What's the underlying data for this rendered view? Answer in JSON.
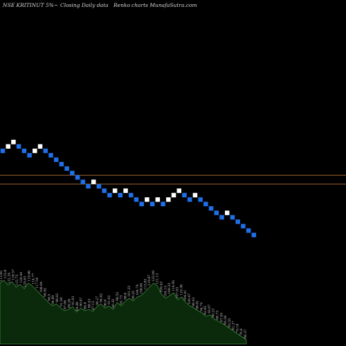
{
  "header": {
    "symbol": "NSE KRITINUT 5%~",
    "caption": "Closing Daily data",
    "chart_name": "Renko",
    "site": "charts MunafaSutra.com"
  },
  "colors": {
    "background": "#000000",
    "up_brick": "#ffffff",
    "down_brick": "#1e6fe8",
    "level_line": "#a0662a",
    "volume_fill": "#0b2a0b",
    "volume_edge": "#3d8a3d",
    "text": "#d8d8d8"
  },
  "chart_data": {
    "type": "renko",
    "title": "NSE KRITINUT 5%~ Closing Daily data Renko charts MunafaSutra.com",
    "brick_dirs": [
      "down",
      "up",
      "up",
      "down",
      "down",
      "down",
      "up",
      "up",
      "down",
      "down",
      "down",
      "down",
      "down",
      "down",
      "down",
      "down",
      "down",
      "up",
      "down",
      "down",
      "down",
      "up",
      "down",
      "up",
      "down",
      "down",
      "down",
      "up",
      "down",
      "up",
      "down",
      "up",
      "up",
      "up",
      "down",
      "down",
      "up",
      "down",
      "down",
      "down",
      "down",
      "down",
      "up",
      "down",
      "down",
      "down",
      "down",
      "down"
    ],
    "start_level": 0,
    "level_lines": [
      -5,
      -7
    ],
    "price_labels": [
      "113.85",
      "115.8",
      "122.24",
      "118.57",
      "115.73",
      "120.44",
      "125.63",
      "119.96",
      "114.77",
      "117.54",
      "108.04",
      "99.92",
      "98.5",
      "94.89",
      "96.02",
      "91.58",
      "87.06",
      "89.26",
      "91.03",
      "84.86",
      "90.87",
      "86.8",
      "88.43",
      "87.15",
      "90.27",
      "94.82",
      "90.8",
      "91.02",
      "90.35",
      "98.52",
      "92.73",
      "98.6",
      "101.23",
      "99.25",
      "104.74",
      "106.64",
      "113.83",
      "119.87",
      "125.09",
      "121.13",
      "109.43",
      "104.13",
      "109.33",
      "114.95",
      "107.03",
      "110.36",
      "104.41",
      "100.47",
      "98.43",
      "96.61",
      "94.74",
      "92.65",
      "93.07",
      "90.23",
      "88.73",
      "87.05",
      "85.56",
      "83.55",
      "81.27",
      "79.18",
      "76.8",
      "66.37"
    ],
    "volume": [
      88,
      92,
      85,
      90,
      82,
      86,
      80,
      88,
      84,
      78,
      72,
      66,
      60,
      55,
      58,
      52,
      48,
      50,
      54,
      46,
      52,
      48,
      50,
      47,
      54,
      58,
      52,
      55,
      50,
      60,
      55,
      62,
      66,
      62,
      68,
      70,
      76,
      82,
      88,
      84,
      72,
      66,
      70,
      74,
      64,
      68,
      60,
      55,
      52,
      48,
      45,
      40,
      42,
      36,
      33,
      30,
      26,
      22,
      18,
      14,
      10,
      6
    ]
  }
}
